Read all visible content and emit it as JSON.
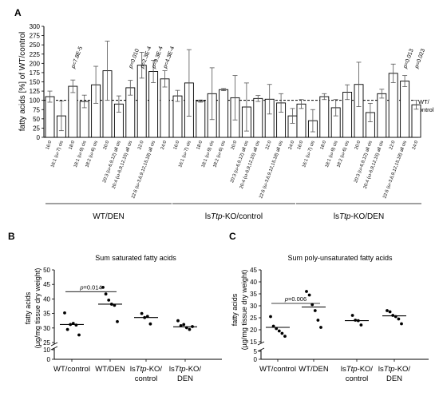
{
  "panel_letters": {
    "a": "A",
    "b": "B",
    "c": "C"
  },
  "chart_data": [
    {
      "type": "bar",
      "panel": "A",
      "ylabel": "fatty acids [%] of WT/control",
      "ylim": [
        0,
        300
      ],
      "yticks": [
        0,
        25,
        50,
        75,
        100,
        125,
        150,
        175,
        200,
        225,
        250,
        275,
        300
      ],
      "reference_line": {
        "value": 100,
        "label_line1": "WT/",
        "label_line2": "control"
      },
      "categories": [
        "16:0",
        "16:1 (ω-7) cis",
        "18:0",
        "18:1 (ω-9) cis",
        "18:2 (ω-6) cis",
        "20:0",
        "20:3 (ω-6,9,12) all cis",
        "20:4 (ω-6,9,12,15) all cis",
        "22:0",
        "22:6 (ω-3,6,9,12,15,18) all cis",
        "24:0"
      ],
      "groups": [
        {
          "name": "WT/DEN",
          "values": [
            110,
            58,
            138,
            97,
            142,
            180,
            90,
            134,
            195,
            178,
            158
          ],
          "errors": [
            15,
            40,
            17,
            17,
            50,
            80,
            22,
            20,
            35,
            30,
            22
          ],
          "pvalues": [
            {
              "category_index": 2,
              "text": "p=7.8E-5"
            },
            {
              "category_index": 7,
              "text": "p=0.010"
            },
            {
              "category_index": 8,
              "text": "p=2.3E-4"
            },
            {
              "category_index": 9,
              "text": "p=9.3E-4"
            },
            {
              "category_index": 10,
              "text": "p=4.3E-4"
            }
          ]
        },
        {
          "name": "lsTtp-KO/control",
          "values": [
            112,
            147,
            98,
            118,
            129,
            107,
            82,
            105,
            103,
            93,
            58
          ],
          "errors": [
            15,
            90,
            3,
            70,
            3,
            60,
            65,
            8,
            40,
            25,
            20
          ],
          "pvalues": []
        },
        {
          "name": "lsTtp-KO/DEN",
          "values": [
            90,
            45,
            110,
            80,
            122,
            143,
            67,
            118,
            173,
            152,
            88
          ],
          "errors": [
            12,
            30,
            8,
            22,
            20,
            60,
            25,
            12,
            25,
            15,
            12
          ],
          "pvalues": [
            {
              "category_index": 9,
              "text": "p=0.013"
            },
            {
              "category_index": 10,
              "text": "p=0.023"
            }
          ]
        }
      ],
      "group_labels": [
        {
          "pre": "WT/DEN",
          "ital": "",
          "post": ""
        },
        {
          "pre": "ls",
          "ital": "Ttp",
          "post": "-KO/control"
        },
        {
          "pre": "ls",
          "ital": "Ttp",
          "post": "-KO/DEN"
        }
      ]
    },
    {
      "type": "scatter",
      "panel": "B",
      "title": "Sum saturated fatty acids",
      "ylabel_line1": "fatty acids",
      "ylabel_line2": "(µg/mg tissue dry weight)",
      "ylim": [
        0,
        50
      ],
      "y_axis_break": [
        10,
        25
      ],
      "yticks": [
        0,
        10,
        25,
        30,
        35,
        40,
        45,
        50
      ],
      "categories": [
        {
          "line1": "WT/control",
          "line2": ""
        },
        {
          "line1": "WT/DEN",
          "line2": ""
        },
        {
          "line1": "lsTtp-KO/",
          "line2": "control"
        },
        {
          "line1": "lsTtp-KO/",
          "line2": "DEN"
        }
      ],
      "points": [
        [
          35.2,
          29.5,
          31.2,
          31.6,
          31.0,
          27.6
        ],
        [
          44.0,
          41.7,
          39.6,
          38.2,
          37.8,
          32.2
        ],
        [
          35.0,
          33.6,
          34.0,
          31.4
        ],
        [
          32.5,
          30.8,
          31.2,
          30.1,
          29.5,
          30.5
        ]
      ],
      "means": [
        31.2,
        38.2,
        33.6,
        30.4
      ],
      "significance": {
        "from": 0,
        "to": 1,
        "text": "p=0.014",
        "y": 42.5
      }
    },
    {
      "type": "scatter",
      "panel": "C",
      "title": "Sum poly-unsaturated fatty acids",
      "ylabel_line1": "fatty acids",
      "ylabel_line2": "(µg/mg tissue dry weight)",
      "ylim": [
        0,
        45
      ],
      "y_axis_break": [
        5,
        15
      ],
      "yticks": [
        0,
        5,
        15,
        20,
        25,
        30,
        35,
        40,
        45
      ],
      "categories": [
        {
          "line1": "WT/control",
          "line2": ""
        },
        {
          "line1": "WT/DEN",
          "line2": ""
        },
        {
          "line1": "lsTtp-KO/",
          "line2": "control"
        },
        {
          "line1": "lsTtp-KO/",
          "line2": "DEN"
        }
      ],
      "points": [
        [
          25.5,
          21.5,
          20.5,
          19.5,
          18.5,
          17.3
        ],
        [
          36.0,
          34.5,
          30.5,
          28.0,
          24.0,
          21.0
        ],
        [
          26.0,
          24.0,
          23.8,
          22.0
        ],
        [
          28.0,
          27.5,
          26.0,
          25.5,
          24.5,
          22.5
        ]
      ],
      "means": [
        21.0,
        29.5,
        23.8,
        25.8
      ],
      "significance": {
        "from": 0,
        "to": 1,
        "text": "p=0.006",
        "y": 31.0
      }
    }
  ]
}
